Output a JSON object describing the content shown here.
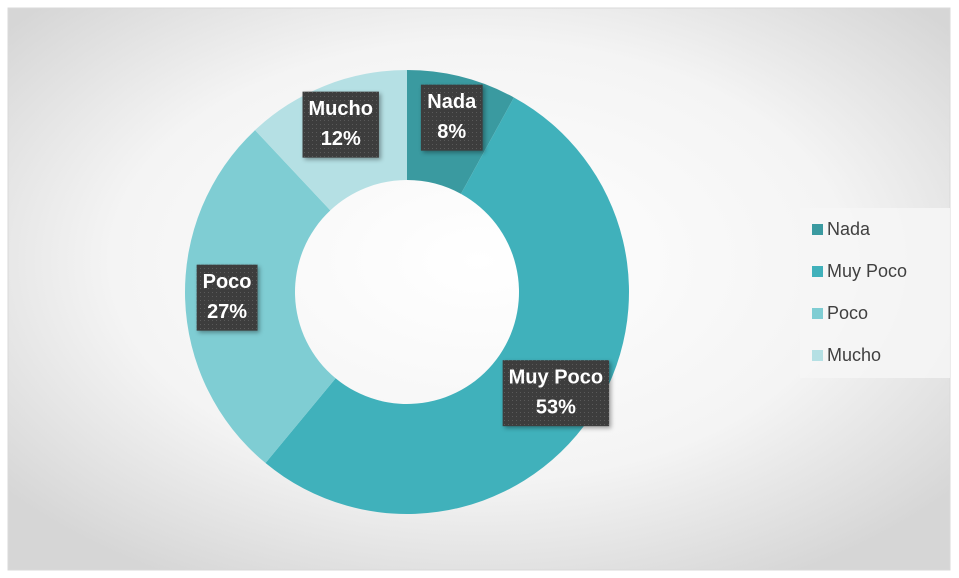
{
  "chart_data": {
    "type": "doughnut",
    "categories": [
      "Nada",
      "Muy Poco",
      "Poco",
      "Mucho"
    ],
    "values": [
      8,
      53,
      27,
      12
    ],
    "value_labels": [
      "8%",
      "53%",
      "27%",
      "12%"
    ],
    "colors": [
      "#3a9aa0",
      "#40b1bb",
      "#7fcdd3",
      "#b5e0e4"
    ],
    "legend": "right"
  }
}
